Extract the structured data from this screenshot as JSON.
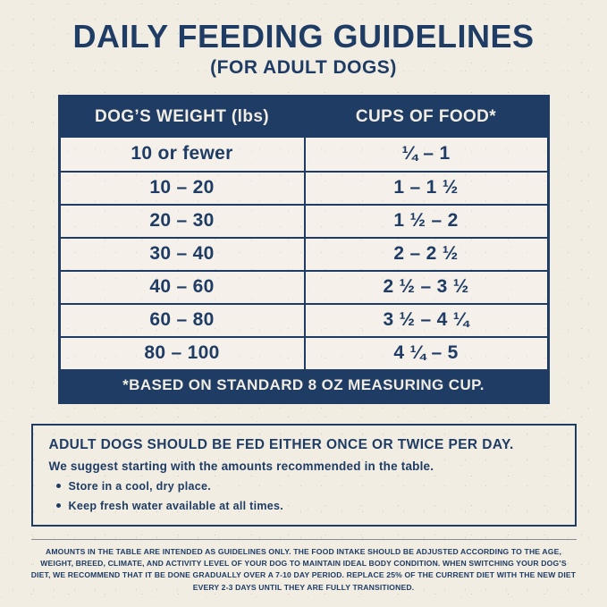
{
  "colors": {
    "navy": "#1e3c64",
    "cream": "#f2ede3"
  },
  "title": "DAILY FEEDING GUIDELINES",
  "subtitle": "(FOR ADULT DOGS)",
  "table": {
    "headers": {
      "weight": "DOG’S WEIGHT (lbs)",
      "cups": "CUPS OF FOOD*"
    },
    "rows": [
      {
        "weight": "10 or fewer",
        "cups": "¼ – 1"
      },
      {
        "weight": "10 – 20",
        "cups": "1 – 1 ½"
      },
      {
        "weight": "20 – 30",
        "cups": "1 ½ – 2"
      },
      {
        "weight": "30 – 40",
        "cups": "2 – 2 ½"
      },
      {
        "weight": "40 – 60",
        "cups": "2 ½ – 3 ½"
      },
      {
        "weight": "60 – 80",
        "cups": "3 ½ – 4 ¼"
      },
      {
        "weight": "80 – 100",
        "cups": "4 ¼ – 5"
      }
    ],
    "footnote": "*BASED ON STANDARD 8 OZ MEASURING CUP."
  },
  "info_box": {
    "heading": "ADULT DOGS SHOULD BE FED EITHER ONCE OR TWICE PER DAY.",
    "subheading": "We suggest starting with the amounts recommended in the table.",
    "bullets": [
      "Store in a cool, dry place.",
      "Keep fresh water available at all times."
    ]
  },
  "fine_print": "AMOUNTS IN THE TABLE ARE INTENDED AS GUIDELINES ONLY. THE FOOD INTAKE SHOULD BE ADJUSTED ACCORDING TO THE AGE, WEIGHT, BREED, CLIMATE, AND ACTIVITY LEVEL OF YOUR DOG TO MAINTAIN IDEAL BODY CONDITION. WHEN SWITCHING YOUR DOG’S DIET, WE RECOMMEND THAT IT BE DONE GRADUALLY OVER A 7-10 DAY PERIOD. REPLACE 25% OF THE CURRENT DIET WITH THE NEW DIET EVERY 2-3 DAYS UNTIL THEY ARE FULLY TRANSITIONED."
}
